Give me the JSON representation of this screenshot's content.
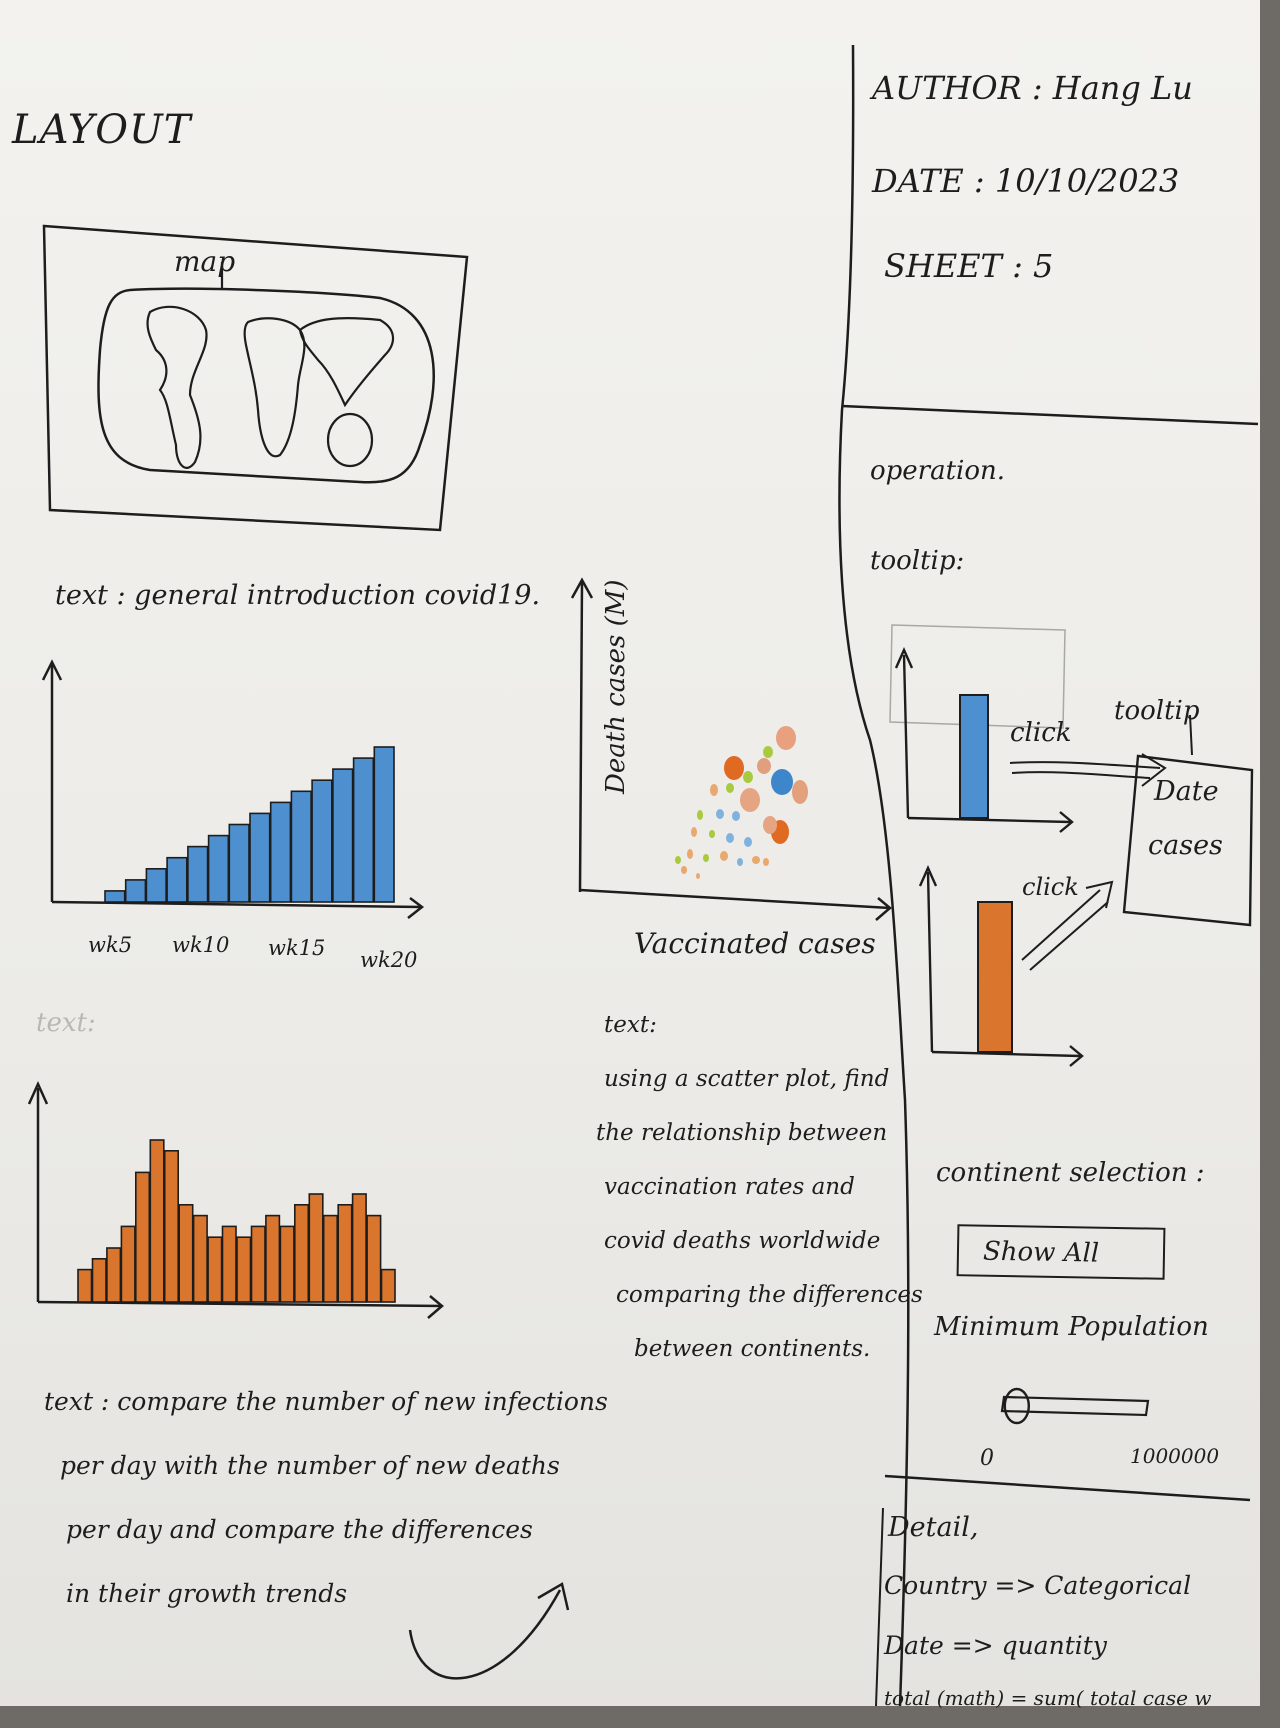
{
  "layout_title": "LAYOUT",
  "meta": {
    "author": "AUTHOR : Hang Lu",
    "date": "DATE : 10/10/2023",
    "sheet": "SHEET : 5"
  },
  "map": {
    "label": "map"
  },
  "intro_text": "text : general introduction covid19.",
  "faint_text": "text:",
  "bar_chart_blue": {
    "tick_labels": [
      "wk5",
      "wk10",
      "wk15",
      "wk20"
    ],
    "values": [
      1,
      2,
      3,
      4,
      5,
      6,
      7,
      8,
      9,
      10,
      11,
      12,
      13,
      14
    ]
  },
  "bar_chart_orange": {
    "values": [
      3,
      4,
      5,
      7,
      12,
      15,
      14,
      9,
      8,
      6,
      7,
      6,
      7,
      8,
      7,
      9,
      10,
      8,
      9,
      10,
      8,
      3
    ]
  },
  "growth_text": [
    "text : compare the number of new infections",
    "per day with the number of new deaths",
    "per day and compare the differences",
    "in their growth trends"
  ],
  "scatter": {
    "ylabel": "Death cases (M)",
    "xlabel": "Vaccinated cases"
  },
  "scatter_text": [
    "text:",
    "using a scatter plot, find",
    "the relationship between",
    "vaccination rates and",
    "covid deaths worldwide",
    "comparing the differences",
    "between continents."
  ],
  "operation": {
    "heading": "operation.",
    "tooltip_heading": "tooltip:",
    "click_label_1": "click",
    "click_label_2": "click",
    "tooltip_label": "tooltip",
    "tooltip_box_lines": [
      "Date",
      "cases"
    ]
  },
  "continent": {
    "label": "continent selection :",
    "button": "Show All"
  },
  "population": {
    "label": "Minimum Population",
    "min": "0",
    "max": "1000000",
    "value_fraction": 0.05
  },
  "detail": {
    "heading": "Detail,",
    "lines": [
      "Country => Categorical",
      "Date => quantity",
      "total (math) = sum( total case w"
    ]
  },
  "colors": {
    "ink": "#1d1d1d",
    "blue": "#4e8fcf",
    "orange": "#d9752c",
    "paper": "#efeeea"
  }
}
